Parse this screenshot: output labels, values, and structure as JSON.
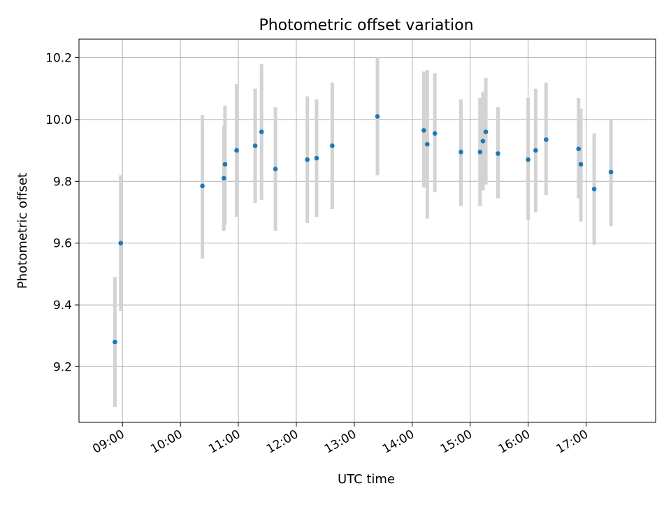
{
  "chart_data": {
    "type": "scatter",
    "title": "Photometric offset variation",
    "xlabel": "UTC time",
    "ylabel": "Photometric offset",
    "x_unit": "hours (UTC)",
    "xlim": [
      8.25,
      18.2
    ],
    "ylim": [
      9.02,
      10.26
    ],
    "x_ticks": [
      {
        "value": 9,
        "label": "09:00"
      },
      {
        "value": 10,
        "label": "10:00"
      },
      {
        "value": 11,
        "label": "11:00"
      },
      {
        "value": 12,
        "label": "12:00"
      },
      {
        "value": 13,
        "label": "13:00"
      },
      {
        "value": 14,
        "label": "14:00"
      },
      {
        "value": 15,
        "label": "15:00"
      },
      {
        "value": 16,
        "label": "16:00"
      },
      {
        "value": 17,
        "label": "17:00"
      }
    ],
    "y_ticks": [
      {
        "value": 9.2,
        "label": "9.2"
      },
      {
        "value": 9.4,
        "label": "9.4"
      },
      {
        "value": 9.6,
        "label": "9.6"
      },
      {
        "value": 9.8,
        "label": "9.8"
      },
      {
        "value": 10.0,
        "label": "10.0"
      },
      {
        "value": 10.2,
        "label": "10.2"
      }
    ],
    "grid": true,
    "colors": {
      "point": "#1f77b4",
      "errorbar": "#d3d3d3",
      "grid": "#b0b0b0"
    },
    "points": [
      {
        "x": 8.87,
        "y": 9.28,
        "ylo": 9.07,
        "yhi": 9.49
      },
      {
        "x": 8.97,
        "y": 9.6,
        "ylo": 9.38,
        "yhi": 9.82
      },
      {
        "x": 10.38,
        "y": 9.785,
        "ylo": 9.55,
        "yhi": 10.015
      },
      {
        "x": 10.75,
        "y": 9.81,
        "ylo": 9.64,
        "yhi": 9.98
      },
      {
        "x": 10.77,
        "y": 9.855,
        "ylo": 9.66,
        "yhi": 10.045
      },
      {
        "x": 10.97,
        "y": 9.9,
        "ylo": 9.685,
        "yhi": 10.115
      },
      {
        "x": 11.29,
        "y": 9.915,
        "ylo": 9.73,
        "yhi": 10.1
      },
      {
        "x": 11.4,
        "y": 9.96,
        "ylo": 9.74,
        "yhi": 10.18
      },
      {
        "x": 11.64,
        "y": 9.84,
        "ylo": 9.64,
        "yhi": 10.04
      },
      {
        "x": 12.19,
        "y": 9.87,
        "ylo": 9.665,
        "yhi": 10.075
      },
      {
        "x": 12.35,
        "y": 9.875,
        "ylo": 9.685,
        "yhi": 10.065
      },
      {
        "x": 12.62,
        "y": 9.915,
        "ylo": 9.71,
        "yhi": 10.12
      },
      {
        "x": 13.4,
        "y": 10.01,
        "ylo": 9.82,
        "yhi": 10.2
      },
      {
        "x": 14.2,
        "y": 9.965,
        "ylo": 9.78,
        "yhi": 10.155
      },
      {
        "x": 14.26,
        "y": 9.92,
        "ylo": 9.68,
        "yhi": 10.16
      },
      {
        "x": 14.39,
        "y": 9.955,
        "ylo": 9.765,
        "yhi": 10.15
      },
      {
        "x": 14.84,
        "y": 9.895,
        "ylo": 9.72,
        "yhi": 10.065
      },
      {
        "x": 15.17,
        "y": 9.895,
        "ylo": 9.72,
        "yhi": 10.07
      },
      {
        "x": 15.22,
        "y": 9.93,
        "ylo": 9.77,
        "yhi": 10.09
      },
      {
        "x": 15.27,
        "y": 9.96,
        "ylo": 9.79,
        "yhi": 10.135
      },
      {
        "x": 15.48,
        "y": 9.89,
        "ylo": 9.745,
        "yhi": 10.04
      },
      {
        "x": 16.0,
        "y": 9.87,
        "ylo": 9.675,
        "yhi": 10.07
      },
      {
        "x": 16.13,
        "y": 9.9,
        "ylo": 9.7,
        "yhi": 10.1
      },
      {
        "x": 16.31,
        "y": 9.935,
        "ylo": 9.755,
        "yhi": 10.12
      },
      {
        "x": 16.87,
        "y": 9.905,
        "ylo": 9.745,
        "yhi": 10.07
      },
      {
        "x": 16.91,
        "y": 9.855,
        "ylo": 9.67,
        "yhi": 10.035
      },
      {
        "x": 17.14,
        "y": 9.775,
        "ylo": 9.595,
        "yhi": 9.955
      },
      {
        "x": 17.43,
        "y": 9.83,
        "ylo": 9.655,
        "yhi": 10.0
      }
    ]
  }
}
